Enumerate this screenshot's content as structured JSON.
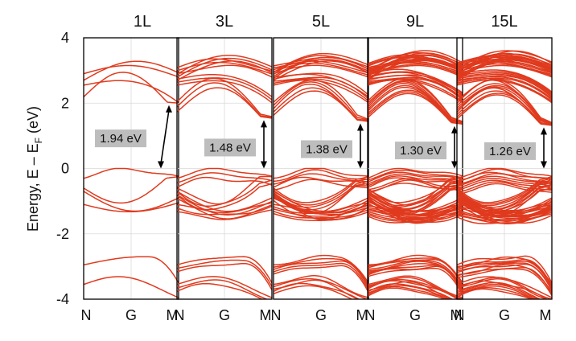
{
  "chart_data": {
    "type": "line",
    "ylabel": "Energy, E – E",
    "ylabel_subscript": "F",
    "ylabel_unit": "(eV)",
    "ylim": [
      -4,
      4
    ],
    "yticks": [
      4,
      2,
      0,
      -2,
      -4
    ],
    "ytick_labels": [
      "4",
      "2",
      "0",
      "-2",
      "-4"
    ],
    "kpath_labels": [
      "N",
      "G",
      "M"
    ],
    "grid": true,
    "line_color": "#e03a1e",
    "panels": [
      {
        "title": "1L",
        "band_gap": 1.94,
        "gap_label": "1.94 eV",
        "vbm": 0.0,
        "cbm": 1.94,
        "n_layers": 1
      },
      {
        "title": "3L",
        "band_gap": 1.48,
        "gap_label": "1.48 eV",
        "vbm": 0.0,
        "cbm": 1.48,
        "n_layers": 3
      },
      {
        "title": "5L",
        "band_gap": 1.38,
        "gap_label": "1.38 eV",
        "vbm": 0.0,
        "cbm": 1.38,
        "n_layers": 5
      },
      {
        "title": "9L",
        "band_gap": 1.3,
        "gap_label": "1.30 eV",
        "vbm": 0.0,
        "cbm": 1.3,
        "n_layers": 9
      },
      {
        "title": "15L",
        "band_gap": 1.26,
        "gap_label": "1.26 eV",
        "vbm": 0.0,
        "cbm": 1.26,
        "n_layers": 15
      }
    ]
  }
}
